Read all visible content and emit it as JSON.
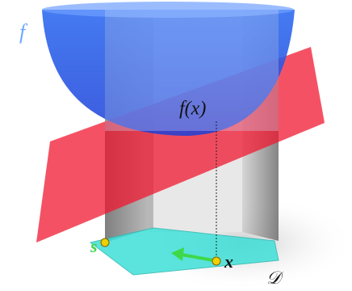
{
  "labels": {
    "function": "f",
    "value": "f(x)",
    "start": "s",
    "point": "x",
    "domain": "𝒟"
  }
}
